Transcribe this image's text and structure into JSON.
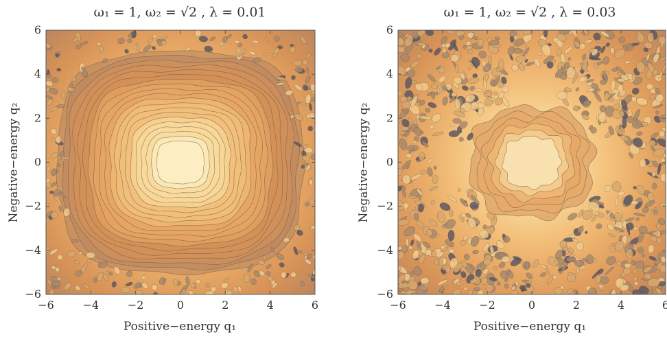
{
  "chart_data": [
    {
      "type": "heatmap",
      "title": "ω₁ = 1, ω₂ = √2 , λ = 0.01",
      "xlabel": "Positive−energy q₁",
      "ylabel": "Negative−energy q₂",
      "xlim": [
        -6,
        6
      ],
      "ylim": [
        -6,
        6
      ],
      "xticks": [
        "−6",
        "−4",
        "−2",
        "0",
        "2",
        "4",
        "6"
      ],
      "yticks": [
        "−6",
        "−4",
        "−2",
        "0",
        "2",
        "4",
        "6"
      ],
      "x_tick_values": [
        -6,
        -4,
        -2,
        0,
        2,
        4,
        6
      ],
      "y_tick_values": [
        -6,
        -4,
        -2,
        0,
        2,
        4,
        6
      ],
      "contour": {
        "center_level_radius": 1,
        "outer_stable_radius": 5.2,
        "chaotic_corners": true,
        "irregularity": 0.2
      },
      "colormap": [
        "#fdf2cc",
        "#f9dca0",
        "#f3c17b",
        "#e7a865",
        "#d69257",
        "#b88560"
      ]
    },
    {
      "type": "heatmap",
      "title": "ω₁ = 1, ω₂ = √2 , λ = 0.03",
      "xlabel": "Positive−energy q₁",
      "ylabel": "Negative−energy q₂",
      "xlim": [
        -6,
        6
      ],
      "ylim": [
        -6,
        6
      ],
      "xticks": [
        "−6",
        "−4",
        "−2",
        "0",
        "2",
        "4",
        "6"
      ],
      "yticks": [
        "−6",
        "−4",
        "−2",
        "0",
        "2",
        "4",
        "6"
      ],
      "x_tick_values": [
        -6,
        -4,
        -2,
        0,
        2,
        4,
        6
      ],
      "y_tick_values": [
        -6,
        -4,
        -2,
        0,
        2,
        4,
        6
      ],
      "contour": {
        "center_level_radius": 1.2,
        "outer_stable_radius": 2.6,
        "chaotic_corners": true,
        "irregularity": 0.85
      },
      "colormap": [
        "#fdf2cc",
        "#f9dca0",
        "#f3c17b",
        "#e7a865",
        "#d69257",
        "#b88560"
      ]
    }
  ]
}
